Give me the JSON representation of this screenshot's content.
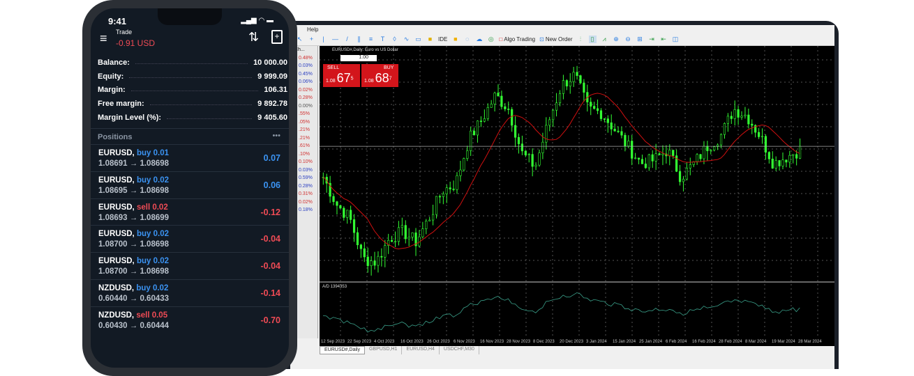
{
  "colors": {
    "buy": "#3b93f2",
    "sell": "#ef4b55",
    "candle": "#33ff33",
    "ma": "#d01010",
    "sell_box": "#d3151b"
  },
  "phone": {
    "time": "9:41",
    "title": "Trade",
    "pnl": "-0.91 USD",
    "icons": [
      "menu-icon",
      "sort-icon",
      "new-order-icon",
      "signal-icon",
      "wifi-icon",
      "battery-icon"
    ],
    "account": [
      {
        "label": "Balance:",
        "value": "10 000.00"
      },
      {
        "label": "Equity:",
        "value": "9 999.09"
      },
      {
        "label": "Margin:",
        "value": "106.31"
      },
      {
        "label": "Free margin:",
        "value": "9 892.78"
      },
      {
        "label": "Margin Level (%):",
        "value": "9 405.60"
      }
    ],
    "positions_label": "Positions",
    "more": "•••",
    "positions": [
      {
        "symbol": "EURUSD,",
        "side": "buy 0.01",
        "prices": "1.08691 → 1.08698",
        "profit": "0.07"
      },
      {
        "symbol": "EURUSD,",
        "side": "buy 0.02",
        "prices": "1.08695 → 1.08698",
        "profit": "0.06"
      },
      {
        "symbol": "EURUSD,",
        "side": "sell 0.02",
        "prices": "1.08693 → 1.08699",
        "profit": "-0.12"
      },
      {
        "symbol": "EURUSD,",
        "side": "buy 0.02",
        "prices": "1.08700 → 1.08698",
        "profit": "-0.04"
      },
      {
        "symbol": "EURUSD,",
        "side": "buy 0.02",
        "prices": "1.08700 → 1.08698",
        "profit": "-0.04"
      },
      {
        "symbol": "NZDUSD,",
        "side": "buy 0.02",
        "prices": "0.60440 → 0.60433",
        "profit": "-0.14"
      },
      {
        "symbol": "NZDUSD,",
        "side": "sell 0.05",
        "prices": "0.60430 → 0.60444",
        "profit": "-0.70"
      }
    ]
  },
  "terminal": {
    "menu": "Help",
    "toolbar": {
      "algo": "Algo Trading",
      "new_order": "New Order",
      "ide": "IDE"
    },
    "market_watch_header": "Ch...",
    "changes": [
      "0.48%",
      "0.03%",
      "0.45%",
      "0.06%",
      "0.02%",
      "0.28%",
      "0.00%",
      ".55%",
      ".05%",
      ".21%",
      ".21%",
      ".61%",
      ".10%",
      "0.10%",
      "0.03%",
      "0.59%",
      "0.28%",
      "0.31%",
      "0.02%",
      "0.18%"
    ],
    "change_dirs": [
      "d",
      "u",
      "u",
      "u",
      "d",
      "d",
      "n",
      "d",
      "d",
      "d",
      "d",
      "d",
      "d",
      "d",
      "u",
      "u",
      "u",
      "d",
      "d",
      "u"
    ],
    "chart_title": "EURUSD#,Daily: Euro vs US Dollar",
    "trade": {
      "sell": "SELL",
      "buy": "BUY",
      "lot": "1.00",
      "sell_big": "1.08",
      "sell_pips": "67",
      "sell_frac": "5",
      "buy_big": "1.08",
      "buy_pips": "68",
      "buy_frac": "7"
    },
    "indicator_label": "A/D 1394353",
    "dates": [
      "12 Sep 2023",
      "22 Sep 2023",
      "4 Oct 2023",
      "16 Oct 2023",
      "26 Oct 2023",
      "6 Nov 2023",
      "16 Nov 2023",
      "28 Nov 2023",
      "8 Dec 2023",
      "20 Dec 2023",
      "3 Jan 2024",
      "15 Jan 2024",
      "25 Jan 2024",
      "6 Feb 2024",
      "16 Feb 2024",
      "28 Feb 2024",
      "8 Mar 2024",
      "19 Mar 2024",
      "28 Mar 2024"
    ],
    "tabs": [
      "EURUSD#,Daily",
      "GBPUSD,H1",
      "EURUSD,H4",
      "USDCHF,M30"
    ]
  },
  "chart_data": {
    "type": "candlestick",
    "symbol": "EURUSD#",
    "timeframe": "Daily",
    "approx_closes": [
      1.074,
      1.066,
      1.062,
      1.05,
      1.049,
      1.056,
      1.058,
      1.055,
      1.062,
      1.07,
      1.072,
      1.085,
      1.091,
      1.098,
      1.094,
      1.081,
      1.077,
      1.09,
      1.101,
      1.104,
      1.094,
      1.093,
      1.088,
      1.083,
      1.078,
      1.079,
      1.082,
      1.074,
      1.078,
      1.083,
      1.086,
      1.094,
      1.092,
      1.086,
      1.078,
      1.08,
      1.082
    ],
    "indicator": "A/D"
  }
}
